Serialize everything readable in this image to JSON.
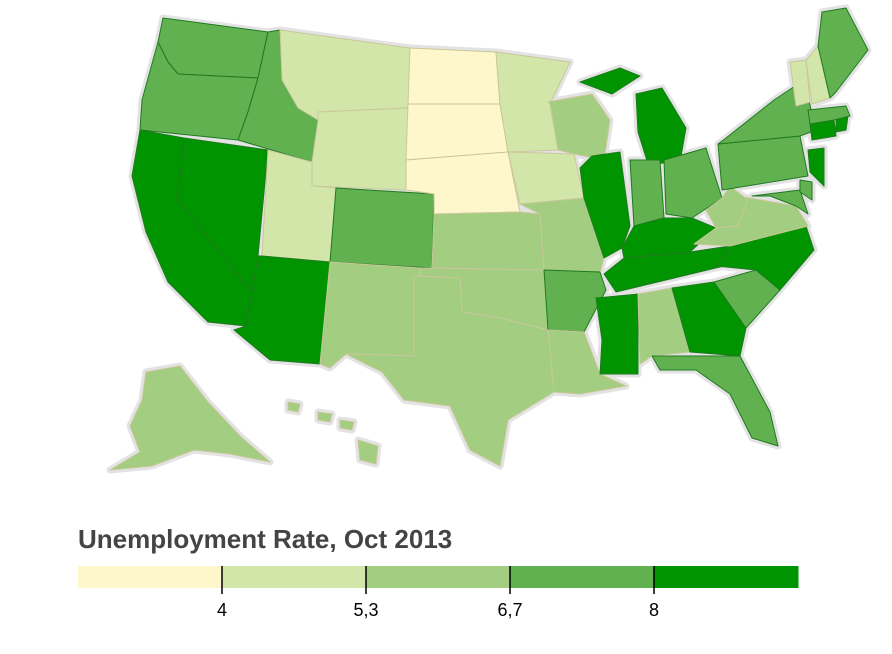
{
  "legend": {
    "title": "Unemployment Rate, Oct 2013",
    "thresholds": [
      4,
      5.3,
      6.7,
      8
    ],
    "tick_labels": [
      "4",
      "5,3",
      "6,7",
      "8"
    ],
    "colors": [
      "#fff7cc",
      "#d3e6aa",
      "#a3cd80",
      "#62b150",
      "#009400"
    ]
  },
  "colors": {
    "halo": "#e3e3e3",
    "state_stroke_light": "#c9c79a",
    "state_stroke_dark": "#1f7a1f"
  },
  "states_by_class": {
    "0": [
      "North Dakota",
      "South Dakota",
      "Nebraska"
    ],
    "1": [
      "Montana",
      "Wyoming",
      "Utah",
      "Minnesota",
      "Iowa",
      "Vermont",
      "New Hampshire"
    ],
    "2": [
      "New Mexico",
      "Texas",
      "Kansas",
      "Oklahoma",
      "Missouri",
      "Louisiana",
      "Wisconsin",
      "Alabama",
      "Virginia",
      "West Virginia",
      "Hawaii",
      "Alaska"
    ],
    "3": [
      "Washington",
      "Oregon",
      "Idaho",
      "Colorado",
      "Arkansas",
      "Indiana",
      "Ohio",
      "Pennsylvania",
      "New York",
      "Maine",
      "Massachusetts",
      "South Carolina",
      "Florida",
      "Maryland",
      "Delaware"
    ],
    "4": [
      "California",
      "Nevada",
      "Arizona",
      "Illinois",
      "Michigan",
      "Kentucky",
      "Tennessee",
      "Mississippi",
      "Georgia",
      "North Carolina",
      "New Jersey",
      "Rhode Island",
      "Connecticut"
    ]
  }
}
